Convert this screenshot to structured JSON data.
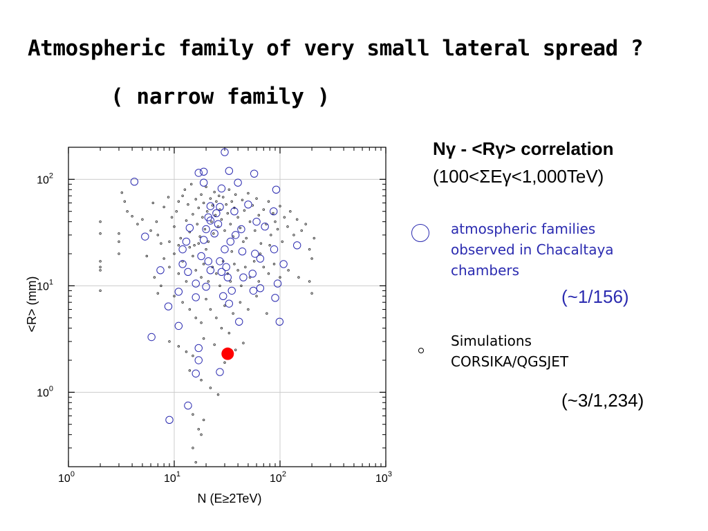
{
  "slide": {
    "title": "Atmospheric family of very small lateral spread ?",
    "subtitle": "( narrow family )",
    "correlation_head": "Nγ - <Rγ>",
    "correlation_word": "correlation",
    "energy_range": "(100<ΣEγ<1,000TeV)",
    "legend_observed": [
      "atmospheric families",
      "observed in Chacaltaya",
      "chambers"
    ],
    "ratio_observed": "(~1/156)",
    "legend_simulation": [
      "Simulations",
      "CORSIKA/QGSJET"
    ],
    "ratio_simulation": "(~3/1,234)",
    "colors": {
      "observed": "#2b2bb0",
      "simulation": "#333333",
      "highlight": "#ff0000"
    }
  },
  "chart_data": {
    "type": "scatter",
    "xlabel": "N (E≥2TeV)",
    "ylabel": "<R> (mm)",
    "x_scale": "log",
    "y_scale": "log",
    "xlim": [
      1,
      1000
    ],
    "ylim": [
      0.2,
      200
    ],
    "x_ticks": [
      "10",
      "10",
      "10",
      "10"
    ],
    "x_tick_exponents": [
      "0",
      "1",
      "2",
      "3"
    ],
    "y_ticks": [
      "10",
      "10",
      "10"
    ],
    "y_tick_exponents": [
      "0",
      "1",
      "2"
    ],
    "grid": true,
    "series": [
      {
        "name": "atmospheric families observed in Chacaltaya chambers",
        "marker": "open-circle",
        "points": [
          [
            30,
            180
          ],
          [
            17,
            115
          ],
          [
            19,
            118
          ],
          [
            33,
            120
          ],
          [
            4.2,
            95
          ],
          [
            19,
            93
          ],
          [
            28,
            82
          ],
          [
            40,
            93
          ],
          [
            57,
            113
          ],
          [
            92,
            80
          ],
          [
            87,
            50
          ],
          [
            22,
            56
          ],
          [
            27,
            55
          ],
          [
            50,
            58
          ],
          [
            37,
            50
          ],
          [
            60,
            40
          ],
          [
            72,
            36
          ],
          [
            5.3,
            29
          ],
          [
            14,
            35
          ],
          [
            25,
            48
          ],
          [
            22,
            41
          ],
          [
            20,
            34
          ],
          [
            13,
            26
          ],
          [
            12,
            22
          ],
          [
            19,
            27
          ],
          [
            24,
            31
          ],
          [
            30,
            22
          ],
          [
            34,
            26
          ],
          [
            38,
            30
          ],
          [
            43,
            34
          ],
          [
            18,
            19
          ],
          [
            21,
            17
          ],
          [
            27,
            17
          ],
          [
            31,
            15
          ],
          [
            44,
            21
          ],
          [
            58,
            20
          ],
          [
            65,
            18
          ],
          [
            88,
            22
          ],
          [
            108,
            16
          ],
          [
            145,
            24
          ],
          [
            7.4,
            14
          ],
          [
            12,
            16
          ],
          [
            13.5,
            13.5
          ],
          [
            22,
            14
          ],
          [
            28,
            13.5
          ],
          [
            32,
            12
          ],
          [
            45,
            12
          ],
          [
            55,
            13
          ],
          [
            16,
            10.5
          ],
          [
            20,
            9.8
          ],
          [
            35,
            9
          ],
          [
            65,
            9.5
          ],
          [
            95,
            10.5
          ],
          [
            11,
            8.8
          ],
          [
            16,
            7.8
          ],
          [
            29,
            8
          ],
          [
            33,
            6.8
          ],
          [
            56,
            9
          ],
          [
            90,
            7.7
          ],
          [
            8.8,
            6.4
          ],
          [
            11,
            4.2
          ],
          [
            41,
            4.6
          ],
          [
            99,
            4.6
          ],
          [
            6.1,
            3.3
          ],
          [
            17,
            2.6
          ],
          [
            17,
            2
          ],
          [
            16,
            1.5
          ],
          [
            27,
            1.55
          ],
          [
            13.5,
            0.75
          ],
          [
            9,
            0.55
          ],
          [
            26,
            38
          ],
          [
            21,
            44
          ]
        ]
      },
      {
        "name": "Simulations CORSIKA/QGSJET",
        "marker": "small-open-circle",
        "points": [
          [
            2,
            40
          ],
          [
            2,
            31
          ],
          [
            2,
            17
          ],
          [
            2,
            15
          ],
          [
            2,
            14
          ],
          [
            2,
            9
          ],
          [
            3,
            20
          ],
          [
            3,
            26
          ],
          [
            3,
            31
          ],
          [
            3.2,
            75
          ],
          [
            3.4,
            62
          ],
          [
            3.6,
            50
          ],
          [
            4,
            45
          ],
          [
            4.5,
            38
          ],
          [
            5,
            42
          ],
          [
            6,
            33
          ],
          [
            6.3,
            60
          ],
          [
            6.8,
            40
          ],
          [
            7,
            30
          ],
          [
            7.5,
            25
          ],
          [
            8,
            55
          ],
          [
            8.8,
            68
          ],
          [
            9.5,
            44
          ],
          [
            10,
            36
          ],
          [
            10.5,
            50
          ],
          [
            11,
            62
          ],
          [
            11.5,
            28
          ],
          [
            12,
            70
          ],
          [
            12.6,
            80
          ],
          [
            13,
            41
          ],
          [
            13.5,
            58
          ],
          [
            14,
            32
          ],
          [
            14.5,
            90
          ],
          [
            15,
            47
          ],
          [
            15.5,
            24
          ],
          [
            16,
            65
          ],
          [
            16.5,
            38
          ],
          [
            17,
            54
          ],
          [
            17.5,
            29
          ],
          [
            18,
            72
          ],
          [
            18.5,
            44
          ],
          [
            19,
            60
          ],
          [
            19.5,
            34
          ],
          [
            20,
            85
          ],
          [
            20.5,
            50
          ],
          [
            21,
            26
          ],
          [
            22,
            66
          ],
          [
            22.5,
            40
          ],
          [
            23,
            57
          ],
          [
            23.5,
            31
          ],
          [
            24,
            76
          ],
          [
            24.5,
            46
          ],
          [
            25,
            62
          ],
          [
            26,
            36
          ],
          [
            26.5,
            70
          ],
          [
            27,
            52
          ],
          [
            28,
            42
          ],
          [
            29,
            68
          ],
          [
            30,
            33
          ],
          [
            31,
            58
          ],
          [
            32,
            48
          ],
          [
            33,
            80
          ],
          [
            34,
            38
          ],
          [
            35,
            62
          ],
          [
            36,
            29
          ],
          [
            37,
            54
          ],
          [
            38,
            72
          ],
          [
            40,
            44
          ],
          [
            42,
            35
          ],
          [
            44,
            64
          ],
          [
            46,
            51
          ],
          [
            48,
            28
          ],
          [
            50,
            74
          ],
          [
            52,
            40
          ],
          [
            55,
            57
          ],
          [
            58,
            33
          ],
          [
            60,
            66
          ],
          [
            63,
            46
          ],
          [
            66,
            25
          ],
          [
            70,
            52
          ],
          [
            74,
            38
          ],
          [
            78,
            62
          ],
          [
            82,
            30
          ],
          [
            86,
            48
          ],
          [
            90,
            40
          ],
          [
            95,
            34
          ],
          [
            100,
            56
          ],
          [
            105,
            26
          ],
          [
            110,
            44
          ],
          [
            118,
            36
          ],
          [
            125,
            50
          ],
          [
            135,
            30
          ],
          [
            145,
            42
          ],
          [
            160,
            33
          ],
          [
            175,
            38
          ],
          [
            190,
            22
          ],
          [
            8,
            18
          ],
          [
            9,
            15
          ],
          [
            10,
            20
          ],
          [
            11,
            13
          ],
          [
            12,
            17
          ],
          [
            13,
            11
          ],
          [
            15,
            19
          ],
          [
            16,
            14
          ],
          [
            18,
            12
          ],
          [
            19,
            16
          ],
          [
            21,
            11
          ],
          [
            23,
            15
          ],
          [
            25,
            13
          ],
          [
            27,
            10
          ],
          [
            29,
            17
          ],
          [
            32,
            13
          ],
          [
            34,
            11
          ],
          [
            37,
            16
          ],
          [
            40,
            14
          ],
          [
            43,
            10
          ],
          [
            47,
            15
          ],
          [
            52,
            12
          ],
          [
            57,
            17
          ],
          [
            63,
            11
          ],
          [
            70,
            15
          ],
          [
            78,
            13
          ],
          [
            88,
            16
          ],
          [
            100,
            12
          ],
          [
            120,
            14
          ],
          [
            150,
            12
          ],
          [
            190,
            11
          ],
          [
            10,
            8
          ],
          [
            12,
            7
          ],
          [
            14,
            6
          ],
          [
            16,
            5
          ],
          [
            18,
            4.5
          ],
          [
            20,
            7.5
          ],
          [
            22,
            6
          ],
          [
            25,
            5
          ],
          [
            28,
            4
          ],
          [
            30,
            6.5
          ],
          [
            33,
            3.6
          ],
          [
            36,
            5.5
          ],
          [
            42,
            7
          ],
          [
            50,
            6
          ],
          [
            60,
            8
          ],
          [
            75,
            5.5
          ],
          [
            9,
            3
          ],
          [
            11,
            2.7
          ],
          [
            13,
            2.4
          ],
          [
            15,
            2.2
          ],
          [
            19,
            3.2
          ],
          [
            24,
            2.8
          ],
          [
            30,
            1.9
          ],
          [
            38,
            2.5
          ],
          [
            45,
            2.9
          ],
          [
            14,
            1.6
          ],
          [
            18,
            1.3
          ],
          [
            22,
            1.1
          ],
          [
            26,
            0.95
          ],
          [
            15,
            0.62
          ],
          [
            19,
            0.55
          ],
          [
            17,
            0.45
          ],
          [
            15,
            0.3
          ],
          [
            18,
            0.4
          ],
          [
            16,
            0.22
          ],
          [
            200,
            8.5
          ],
          [
            200,
            18
          ],
          [
            210,
            28
          ],
          [
            80,
            24
          ],
          [
            65,
            20
          ],
          [
            45,
            26
          ],
          [
            35,
            21
          ],
          [
            20,
            22
          ],
          [
            17,
            25
          ],
          [
            14,
            23
          ],
          [
            11,
            24
          ],
          [
            9,
            26
          ],
          [
            7.5,
            10
          ],
          [
            7,
            8.5
          ],
          [
            6.5,
            12
          ],
          [
            5.5,
            19
          ]
        ]
      },
      {
        "name": "narrow family",
        "marker": "filled-circle",
        "points": [
          [
            32,
            2.3
          ]
        ]
      }
    ]
  }
}
